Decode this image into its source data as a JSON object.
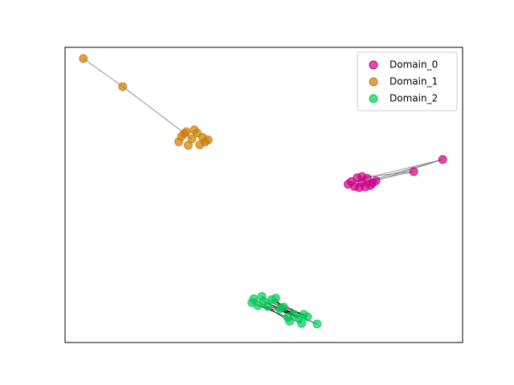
{
  "chart_data": {
    "type": "scatter",
    "xlim": [
      0,
      100
    ],
    "ylim": [
      0,
      100
    ],
    "legend": "upper right",
    "series": [
      {
        "name": "Domain_0",
        "color": "#cc0088",
        "edge_color": "#777777",
        "x": [
          74.7,
          72.0,
          77.4,
          73.5,
          76.0,
          71.2,
          78.2,
          74.0,
          75.5,
          72.8,
          76.8,
          74.7,
          87.7,
          95.0
        ],
        "values": [
          54.1,
          54.5,
          54.0,
          55.8,
          55.6,
          53.6,
          54.8,
          52.5,
          52.7,
          52.9,
          53.2,
          56.2,
          57.9,
          62.0
        ],
        "edges": [
          [
            12,
            0
          ],
          [
            13,
            0
          ],
          [
            13,
            1
          ],
          [
            12,
            3
          ],
          [
            13,
            6
          ]
        ]
      },
      {
        "name": "Domain_1",
        "color": "#cc7a00",
        "edge_color": "#777777",
        "x": [
          4.6,
          14.5,
          31.9,
          29.3,
          34.6,
          30.5,
          33.2,
          28.6,
          35.2,
          31.0,
          33.9,
          30.0,
          32.5,
          36.0
        ],
        "values": [
          96.2,
          86.7,
          69.0,
          69.8,
          69.5,
          71.4,
          71.0,
          68.0,
          67.9,
          66.8,
          67.0,
          70.8,
          72.0,
          68.6
        ],
        "edges": [
          [
            0,
            1
          ],
          [
            1,
            2
          ]
        ]
      },
      {
        "name": "Domain_2",
        "color": "#00cc55",
        "edge_color": "#000000",
        "x": [
          49.9,
          47.5,
          52.0,
          48.5,
          51.0,
          47.0,
          53.0,
          49.5,
          54.1,
          55.0,
          58.8,
          56.5,
          61.0,
          57.5,
          60.0,
          56.0,
          59.5,
          63.4
        ],
        "values": [
          13.9,
          14.8,
          14.5,
          12.5,
          12.2,
          13.5,
          15.0,
          15.6,
          11.4,
          12.0,
          8.2,
          7.2,
          8.7,
          9.5,
          9.5,
          8.5,
          6.5,
          6.3
        ],
        "edges": [
          [
            0,
            10
          ],
          [
            1,
            11
          ],
          [
            2,
            12
          ],
          [
            3,
            13
          ],
          [
            4,
            14
          ],
          [
            6,
            15
          ],
          [
            8,
            10
          ],
          [
            9,
            12
          ],
          [
            0,
            17
          ],
          [
            5,
            16
          ],
          [
            7,
            13
          ],
          [
            2,
            10
          ]
        ]
      }
    ]
  }
}
